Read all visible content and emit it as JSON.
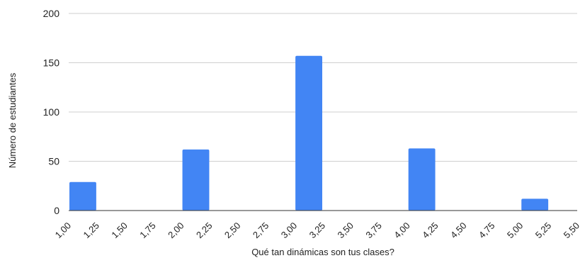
{
  "chart_data": {
    "type": "bar",
    "xlabel": "Qué tan dinámicas son tus clases?",
    "ylabel": "Número de estudiantes",
    "xlim": [
      1.0,
      5.5
    ],
    "ylim": [
      0,
      200
    ],
    "y_ticks": [
      "0",
      "50",
      "100",
      "150",
      "200"
    ],
    "x_ticks": [
      "1,00",
      "1,25",
      "1,50",
      "1,75",
      "2,00",
      "2,25",
      "2,50",
      "2,75",
      "3,00",
      "3,25",
      "3,50",
      "3,75",
      "4,00",
      "4,25",
      "4,50",
      "4,75",
      "5,00",
      "5,25",
      "5,50"
    ],
    "bin_width": 0.25,
    "bins": [
      {
        "start": 1.0,
        "value": 29
      },
      {
        "start": 2.0,
        "value": 62
      },
      {
        "start": 3.0,
        "value": 157
      },
      {
        "start": 4.0,
        "value": 63
      },
      {
        "start": 5.0,
        "value": 12
      }
    ],
    "bar_color": "#4285f4",
    "grid": true
  }
}
